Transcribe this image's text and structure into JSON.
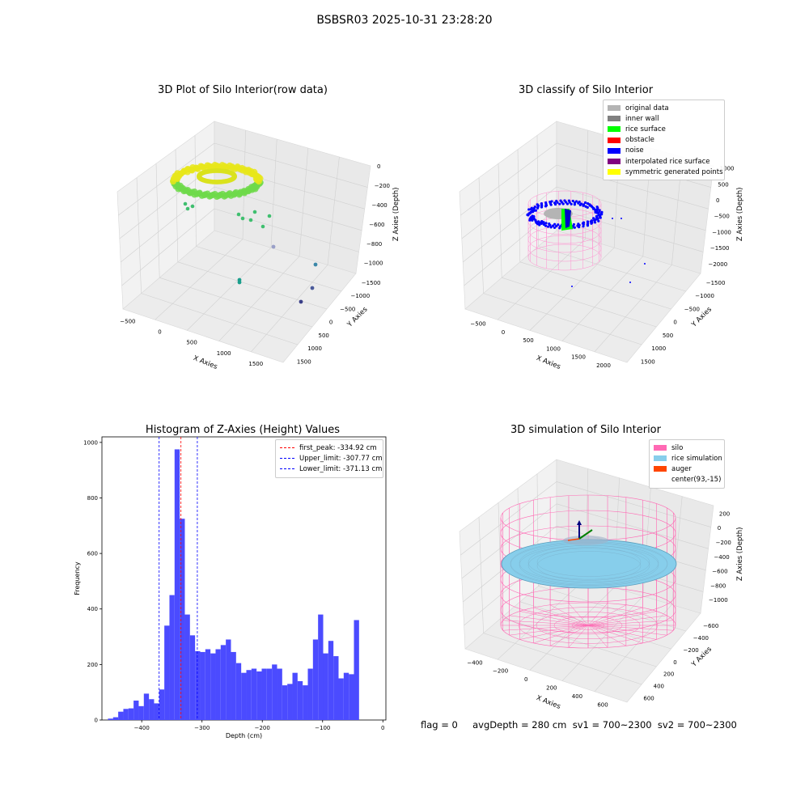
{
  "figure": {
    "suptitle": "BSBSR03 2025-10-31 23:28:20"
  },
  "colors": {
    "hist_bar": "#4b4bff",
    "first_peak": "#ff0000",
    "limits": "#0000ff",
    "silo": "#ff69b4",
    "rice": "#87ceeb",
    "auger": "#ff4500"
  },
  "panels": {
    "raw": {
      "title": "3D Plot of Silo Interior(row data)",
      "xlabel": "X Axies",
      "ylabel": "Y Axies",
      "zlabel": "Z Axies (Depth)",
      "xticks": [
        "−500",
        "0",
        "500",
        "1000",
        "1500"
      ],
      "yticks": [
        "−1500",
        "−1000",
        "−500",
        "0",
        "500",
        "1000",
        "1500"
      ],
      "zticks": [
        "0",
        "−200",
        "−400",
        "−600",
        "−800",
        "−1000"
      ]
    },
    "classify": {
      "title": "3D classify of Silo Interior",
      "xlabel": "X Axies",
      "ylabel": "Y Axies",
      "zlabel": "Z Axies (Depth)",
      "xticks": [
        "−500",
        "0",
        "500",
        "1000",
        "1500",
        "2000"
      ],
      "yticks": [
        "−1500",
        "−1000",
        "−500",
        "0",
        "500",
        "1000",
        "1500"
      ],
      "zticks": [
        "1000",
        "500",
        "0",
        "−500",
        "−1000",
        "−1500",
        "−2000"
      ],
      "legend": [
        {
          "label": "original data",
          "color": "#b4b4b4"
        },
        {
          "label": "inner wall",
          "color": "#808080"
        },
        {
          "label": "rice surface",
          "color": "#00ff00"
        },
        {
          "label": "obstacle",
          "color": "#ff0000"
        },
        {
          "label": "noise",
          "color": "#0000ff"
        },
        {
          "label": "interpolated rice surface",
          "color": "#800080"
        },
        {
          "label": "symmetric generated points",
          "color": "#ffff00"
        }
      ]
    },
    "simulation": {
      "title": "3D simulation of Silo Interior",
      "xlabel": "X Axies",
      "ylabel": "Y Axies",
      "zlabel": "Z Axies (Depth)",
      "xticks": [
        "−400",
        "−200",
        "0",
        "200",
        "400",
        "600"
      ],
      "yticks": [
        "−600",
        "−400",
        "−200",
        "0",
        "200",
        "400",
        "600"
      ],
      "zticks": [
        "200",
        "0",
        "−200",
        "−400",
        "−600",
        "−800",
        "−1000"
      ],
      "legend": [
        {
          "label": "silo",
          "color": "#ff69b4"
        },
        {
          "label": "rice simulation",
          "color": "#87ceeb"
        },
        {
          "label": "auger",
          "color": "#ff4500"
        },
        {
          "label": "center(93,-15)",
          "color": "#ffffff"
        }
      ]
    }
  },
  "chart_data": {
    "type": "bar",
    "title": "Histogram of Z-Axies (Height) Values",
    "xlabel": "Depth (cm)",
    "ylabel": "Frequency",
    "xlim": [
      -466,
      5
    ],
    "ylim": [
      0,
      1020
    ],
    "xticks": [
      "−400",
      "−300",
      "−200",
      "−100",
      "0"
    ],
    "yticks": [
      "0",
      "200",
      "400",
      "600",
      "800",
      "1000"
    ],
    "grid": false,
    "legend_position": "top-right",
    "bin_width": 8.5,
    "bin_edges_start": -456,
    "values": [
      5,
      10,
      30,
      40,
      42,
      70,
      50,
      95,
      75,
      60,
      110,
      340,
      450,
      975,
      725,
      380,
      305,
      248,
      245,
      255,
      240,
      255,
      270,
      290,
      245,
      205,
      170,
      180,
      185,
      175,
      185,
      185,
      200,
      185,
      125,
      130,
      170,
      140,
      125,
      185,
      290,
      380,
      240,
      285,
      230,
      150,
      170,
      165,
      360
    ],
    "lines": [
      {
        "label": "first_peak: -334.92 cm",
        "x": -334.92,
        "color": "#ff0000"
      },
      {
        "label": "Upper_limit: -307.77 cm",
        "x": -307.77,
        "color": "#0000ff"
      },
      {
        "label": "Lower_limit: -371.13 cm",
        "x": -371.13,
        "color": "#0000ff"
      }
    ]
  },
  "status": {
    "text": "flag = 0     avgDepth = 280 cm  sv1 = 700~2300  sv2 = 700~2300"
  }
}
